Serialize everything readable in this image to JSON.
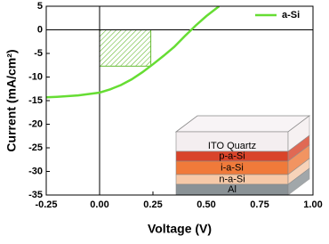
{
  "chart_data": {
    "type": "line",
    "x_label": "Voltage (V)",
    "y_label": "Current (mA/cm²)",
    "xlim": [
      -0.25,
      1.0
    ],
    "ylim": [
      -35,
      5
    ],
    "xticks": [
      -0.25,
      {
        "value": 0,
        "label": "0.00"
      },
      0.25,
      {
        "value": 0.5,
        "label": "0.50"
      },
      0.75,
      {
        "value": 1,
        "label": "1.00"
      }
    ],
    "yticks": [
      5,
      0,
      -5,
      -10,
      -15,
      -20,
      -25,
      -30,
      -35
    ],
    "x": [
      -0.25,
      -0.2,
      -0.1,
      0,
      0.05,
      0.1,
      0.15,
      0.2,
      0.25,
      0.3,
      0.35,
      0.4,
      0.43,
      0.45,
      0.5,
      0.56
    ],
    "series": [
      {
        "name": "a-Si",
        "color": "#66dd33",
        "values": [
          -14.3,
          -14.2,
          -13.9,
          -13.3,
          -12.6,
          -11.7,
          -10.5,
          -9.0,
          -7.3,
          -5.5,
          -3.6,
          -1.3,
          0,
          0.9,
          2.9,
          5
        ]
      }
    ],
    "max_power_point": {
      "x": 0.24,
      "y": -7.7,
      "color": "#66bb33"
    },
    "legend": "upper right",
    "inset": {
      "layers": [
        {
          "label": "ITO Quartz",
          "color": "#f4eef0"
        },
        {
          "label": "p-a-Si",
          "color": "#d9442a"
        },
        {
          "label": "i-a-Si",
          "color": "#f07a3a"
        },
        {
          "label": "n-a-Si",
          "color": "#f6c9a8"
        },
        {
          "label": "Al",
          "color": "#8a9296"
        }
      ]
    }
  }
}
